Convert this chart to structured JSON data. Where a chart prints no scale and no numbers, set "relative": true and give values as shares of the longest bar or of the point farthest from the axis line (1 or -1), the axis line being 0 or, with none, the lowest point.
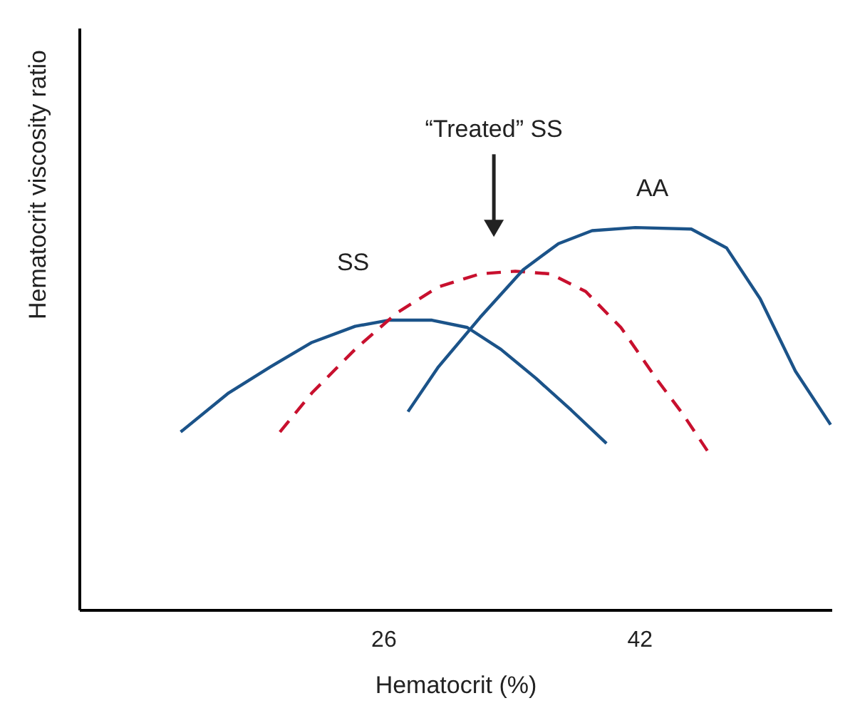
{
  "chart_data": {
    "type": "line",
    "xlabel": "Hematocrit (%)",
    "ylabel": "Hematocrit viscosity ratio",
    "relative": true,
    "xlim": [
      7,
      54
    ],
    "xticks": [
      26,
      42
    ],
    "grid": false,
    "marker": "none",
    "annotations": [
      "“Treated” SS"
    ],
    "series": [
      {
        "name": "SS",
        "color": "#1b5389",
        "line_style": "solid",
        "x": [
          13.3,
          16.3,
          18.9,
          21.5,
          24.2,
          26.3,
          29.0,
          31.2,
          33.3,
          35.5,
          37.7,
          39.9
        ],
        "values": [
          0.466,
          0.568,
          0.636,
          0.7,
          0.742,
          0.758,
          0.758,
          0.739,
          0.682,
          0.606,
          0.523,
          0.436
        ]
      },
      {
        "color": "#c8102e",
        "line_style": "dashed",
        "x": [
          19.5,
          21.5,
          24.2,
          26.8,
          29.4,
          32.0,
          34.2,
          36.4,
          38.6,
          40.8,
          43.0,
          44.7,
          46.2
        ],
        "values": [
          0.466,
          0.568,
          0.682,
          0.777,
          0.845,
          0.879,
          0.886,
          0.879,
          0.833,
          0.739,
          0.606,
          0.511,
          0.417
        ]
      },
      {
        "name": "AA",
        "color": "#1b5389",
        "line_style": "solid",
        "x": [
          27.5,
          29.4,
          32.0,
          34.7,
          36.9,
          39.0,
          41.7,
          45.2,
          47.4,
          49.5,
          51.7,
          53.9
        ],
        "values": [
          0.519,
          0.636,
          0.765,
          0.89,
          0.958,
          0.992,
          1,
          0.996,
          0.947,
          0.814,
          0.625,
          0.485
        ]
      }
    ]
  }
}
